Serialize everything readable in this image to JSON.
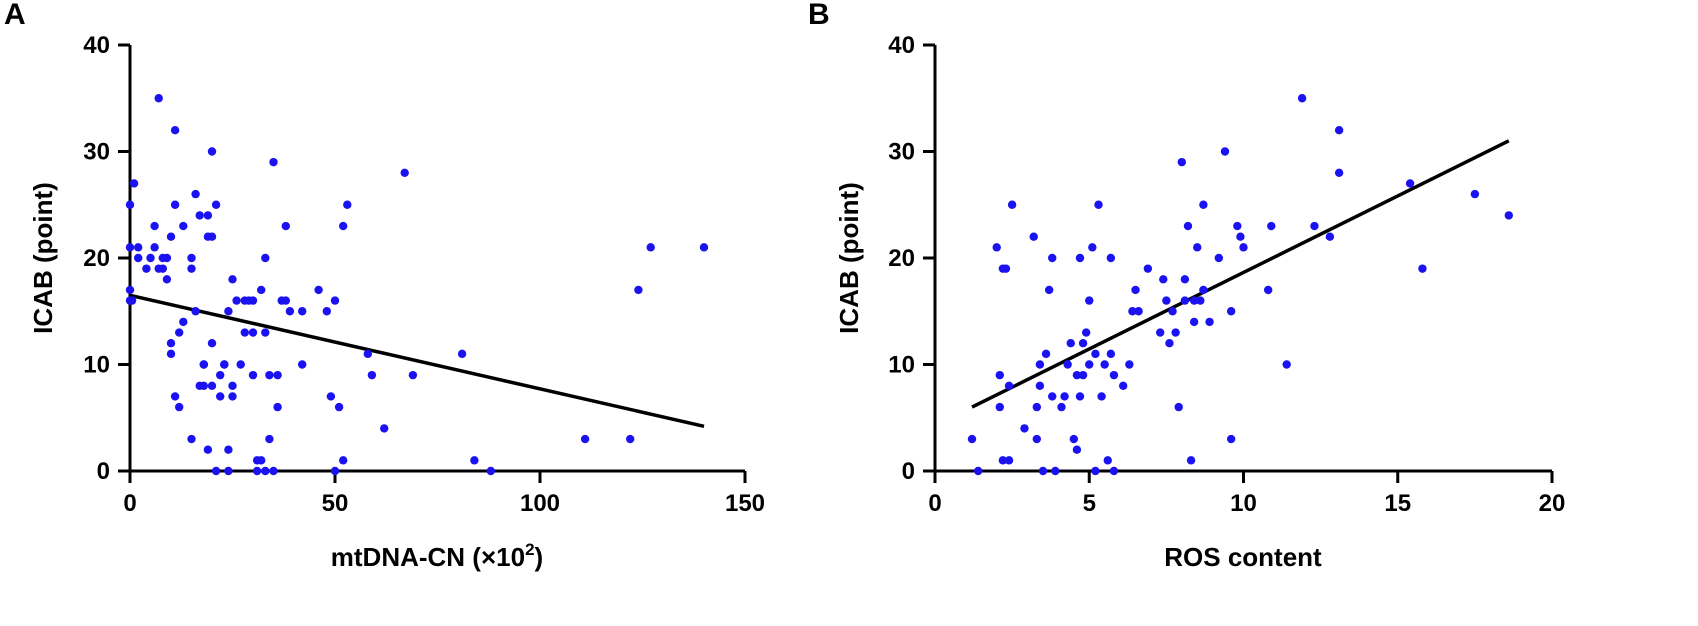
{
  "chart_data": [
    {
      "type": "scatter",
      "panel_label": "A",
      "title": "",
      "xlabel": "mtDNA-CN (×10",
      "xlabel_sup": "2",
      "xlabel_tail": ")",
      "ylabel": "ICAB (point)",
      "xlim": [
        0,
        150
      ],
      "ylim": [
        0,
        40
      ],
      "xticks": [
        0,
        50,
        100,
        150
      ],
      "yticks": [
        0,
        10,
        20,
        30,
        40
      ],
      "grid": false,
      "point_color": "#1a12f0",
      "fit_line": {
        "x": [
          0,
          140
        ],
        "y": [
          16.5,
          4.2
        ]
      },
      "series": [
        {
          "x": [
            0,
            0,
            0,
            0,
            0.5,
            1,
            2,
            2,
            4,
            5,
            6,
            6,
            7,
            7,
            8,
            8,
            9,
            9,
            10,
            10,
            10,
            11,
            11,
            11,
            12,
            12,
            13,
            13,
            15,
            15,
            15,
            16,
            16,
            17,
            17,
            18,
            18,
            18,
            19,
            19,
            19,
            20,
            20,
            20,
            20,
            21,
            21,
            22,
            22,
            23,
            23,
            24,
            24,
            24,
            25,
            25,
            25,
            26,
            27,
            28,
            28,
            29,
            30,
            30,
            30,
            31,
            31,
            32,
            32,
            33,
            33,
            33,
            34,
            34,
            35,
            35,
            36,
            36,
            37,
            38,
            38,
            39,
            42,
            42,
            46,
            48,
            49,
            50,
            50,
            51,
            52,
            52,
            53,
            58,
            59,
            62,
            67,
            69,
            81,
            84,
            88,
            111,
            122,
            124,
            127,
            140
          ],
          "y": [
            25,
            21,
            17,
            16,
            16,
            27,
            21,
            20,
            19,
            20,
            23,
            21,
            19,
            35,
            20,
            19,
            18,
            20,
            22,
            11,
            12,
            25,
            32,
            7,
            6,
            13,
            23,
            14,
            20,
            19,
            3,
            26,
            15,
            24,
            8,
            10,
            10,
            8,
            2,
            22,
            24,
            30,
            8,
            22,
            12,
            25,
            0,
            7,
            9,
            10,
            10,
            15,
            2,
            0,
            18,
            7,
            8,
            16,
            10,
            16,
            13,
            16,
            13,
            16,
            9,
            1,
            0,
            1,
            17,
            20,
            13,
            0,
            9,
            3,
            29,
            0,
            9,
            6,
            16,
            23,
            16,
            15,
            10,
            15,
            17,
            15,
            7,
            16,
            0,
            6,
            23,
            1,
            25,
            11,
            9,
            4,
            28,
            9,
            11,
            1,
            0,
            3,
            3,
            17,
            21,
            21
          ]
        }
      ]
    },
    {
      "type": "scatter",
      "panel_label": "B",
      "title": "",
      "xlabel": "ROS content",
      "ylabel": "ICAB (point)",
      "xlim": [
        0,
        20
      ],
      "ylim": [
        0,
        40
      ],
      "xticks": [
        0,
        5,
        10,
        15,
        20
      ],
      "yticks": [
        0,
        10,
        20,
        30,
        40
      ],
      "grid": false,
      "point_color": "#1a12f0",
      "fit_line": {
        "x": [
          1.2,
          18.6
        ],
        "y": [
          6.0,
          31.0
        ]
      },
      "series": [
        {
          "x": [
            1.2,
            1.4,
            2.0,
            2.1,
            2.1,
            2.2,
            2.2,
            2.3,
            2.4,
            2.4,
            2.5,
            2.9,
            3.2,
            3.3,
            3.3,
            3.4,
            3.4,
            3.5,
            3.6,
            3.7,
            3.8,
            3.8,
            3.9,
            4.1,
            4.2,
            4.3,
            4.4,
            4.5,
            4.6,
            4.6,
            4.7,
            4.7,
            4.8,
            4.8,
            4.9,
            5.0,
            5.0,
            5.1,
            5.2,
            5.2,
            5.3,
            5.4,
            5.5,
            5.6,
            5.7,
            5.7,
            5.8,
            5.8,
            6.1,
            6.3,
            6.4,
            6.5,
            6.6,
            6.9,
            7.3,
            7.4,
            7.5,
            7.6,
            7.7,
            7.8,
            7.9,
            8.0,
            8.1,
            8.1,
            8.2,
            8.3,
            8.4,
            8.4,
            8.5,
            8.6,
            8.7,
            8.7,
            8.9,
            9.2,
            9.4,
            9.6,
            9.6,
            9.8,
            9.9,
            10.0,
            10.8,
            10.9,
            11.4,
            11.9,
            12.3,
            12.8,
            13.1,
            13.1,
            15.4,
            15.8,
            17.5,
            18.6
          ],
          "y": [
            3,
            0,
            21,
            6,
            9,
            19,
            1,
            19,
            8,
            1,
            25,
            4,
            22,
            3,
            6,
            8,
            10,
            0,
            11,
            17,
            7,
            20,
            0,
            6,
            7,
            10,
            12,
            3,
            2,
            9,
            20,
            7,
            9,
            12,
            13,
            16,
            10,
            21,
            11,
            0,
            25,
            7,
            10,
            1,
            11,
            20,
            0,
            9,
            8,
            10,
            15,
            17,
            15,
            19,
            13,
            18,
            16,
            12,
            15,
            13,
            6,
            29,
            18,
            16,
            23,
            1,
            14,
            16,
            21,
            16,
            25,
            17,
            14,
            20,
            30,
            15,
            3,
            23,
            22,
            21,
            17,
            23,
            10,
            35,
            23,
            22,
            28,
            32,
            27,
            19,
            26,
            24
          ]
        }
      ]
    }
  ]
}
